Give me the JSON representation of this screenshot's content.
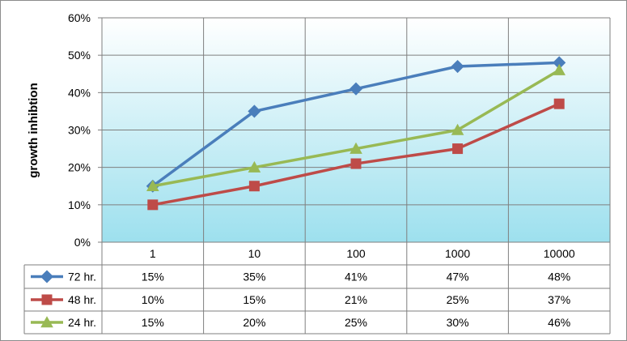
{
  "chart_data": {
    "type": "line",
    "title": "",
    "xlabel": "",
    "ylabel": "growth inhibtion",
    "categories": [
      "1",
      "10",
      "100",
      "1000",
      "10000"
    ],
    "yticks": [
      "0%",
      "10%",
      "20%",
      "30%",
      "40%",
      "50%",
      "60%"
    ],
    "ylim": [
      0,
      60
    ],
    "grid": true,
    "legend": "data-table-left",
    "series": [
      {
        "name": "72 hr.",
        "marker": "diamond",
        "color": "#4a7ebb",
        "values": [
          15,
          35,
          41,
          47,
          48
        ],
        "labels": [
          "15%",
          "35%",
          "41%",
          "47%",
          "48%"
        ]
      },
      {
        "name": "48 hr.",
        "marker": "square",
        "color": "#be4b48",
        "values": [
          10,
          15,
          21,
          25,
          37
        ],
        "labels": [
          "10%",
          "15%",
          "21%",
          "25%",
          "37%"
        ]
      },
      {
        "name": "24 hr.",
        "marker": "triangle",
        "color": "#98b954",
        "values": [
          15,
          20,
          25,
          30,
          46
        ],
        "labels": [
          "15%",
          "20%",
          "25%",
          "30%",
          "46%"
        ]
      }
    ],
    "plot_gradient": [
      "#ffffff",
      "#9de0ee"
    ],
    "grid_color": "#7f7f7f"
  }
}
